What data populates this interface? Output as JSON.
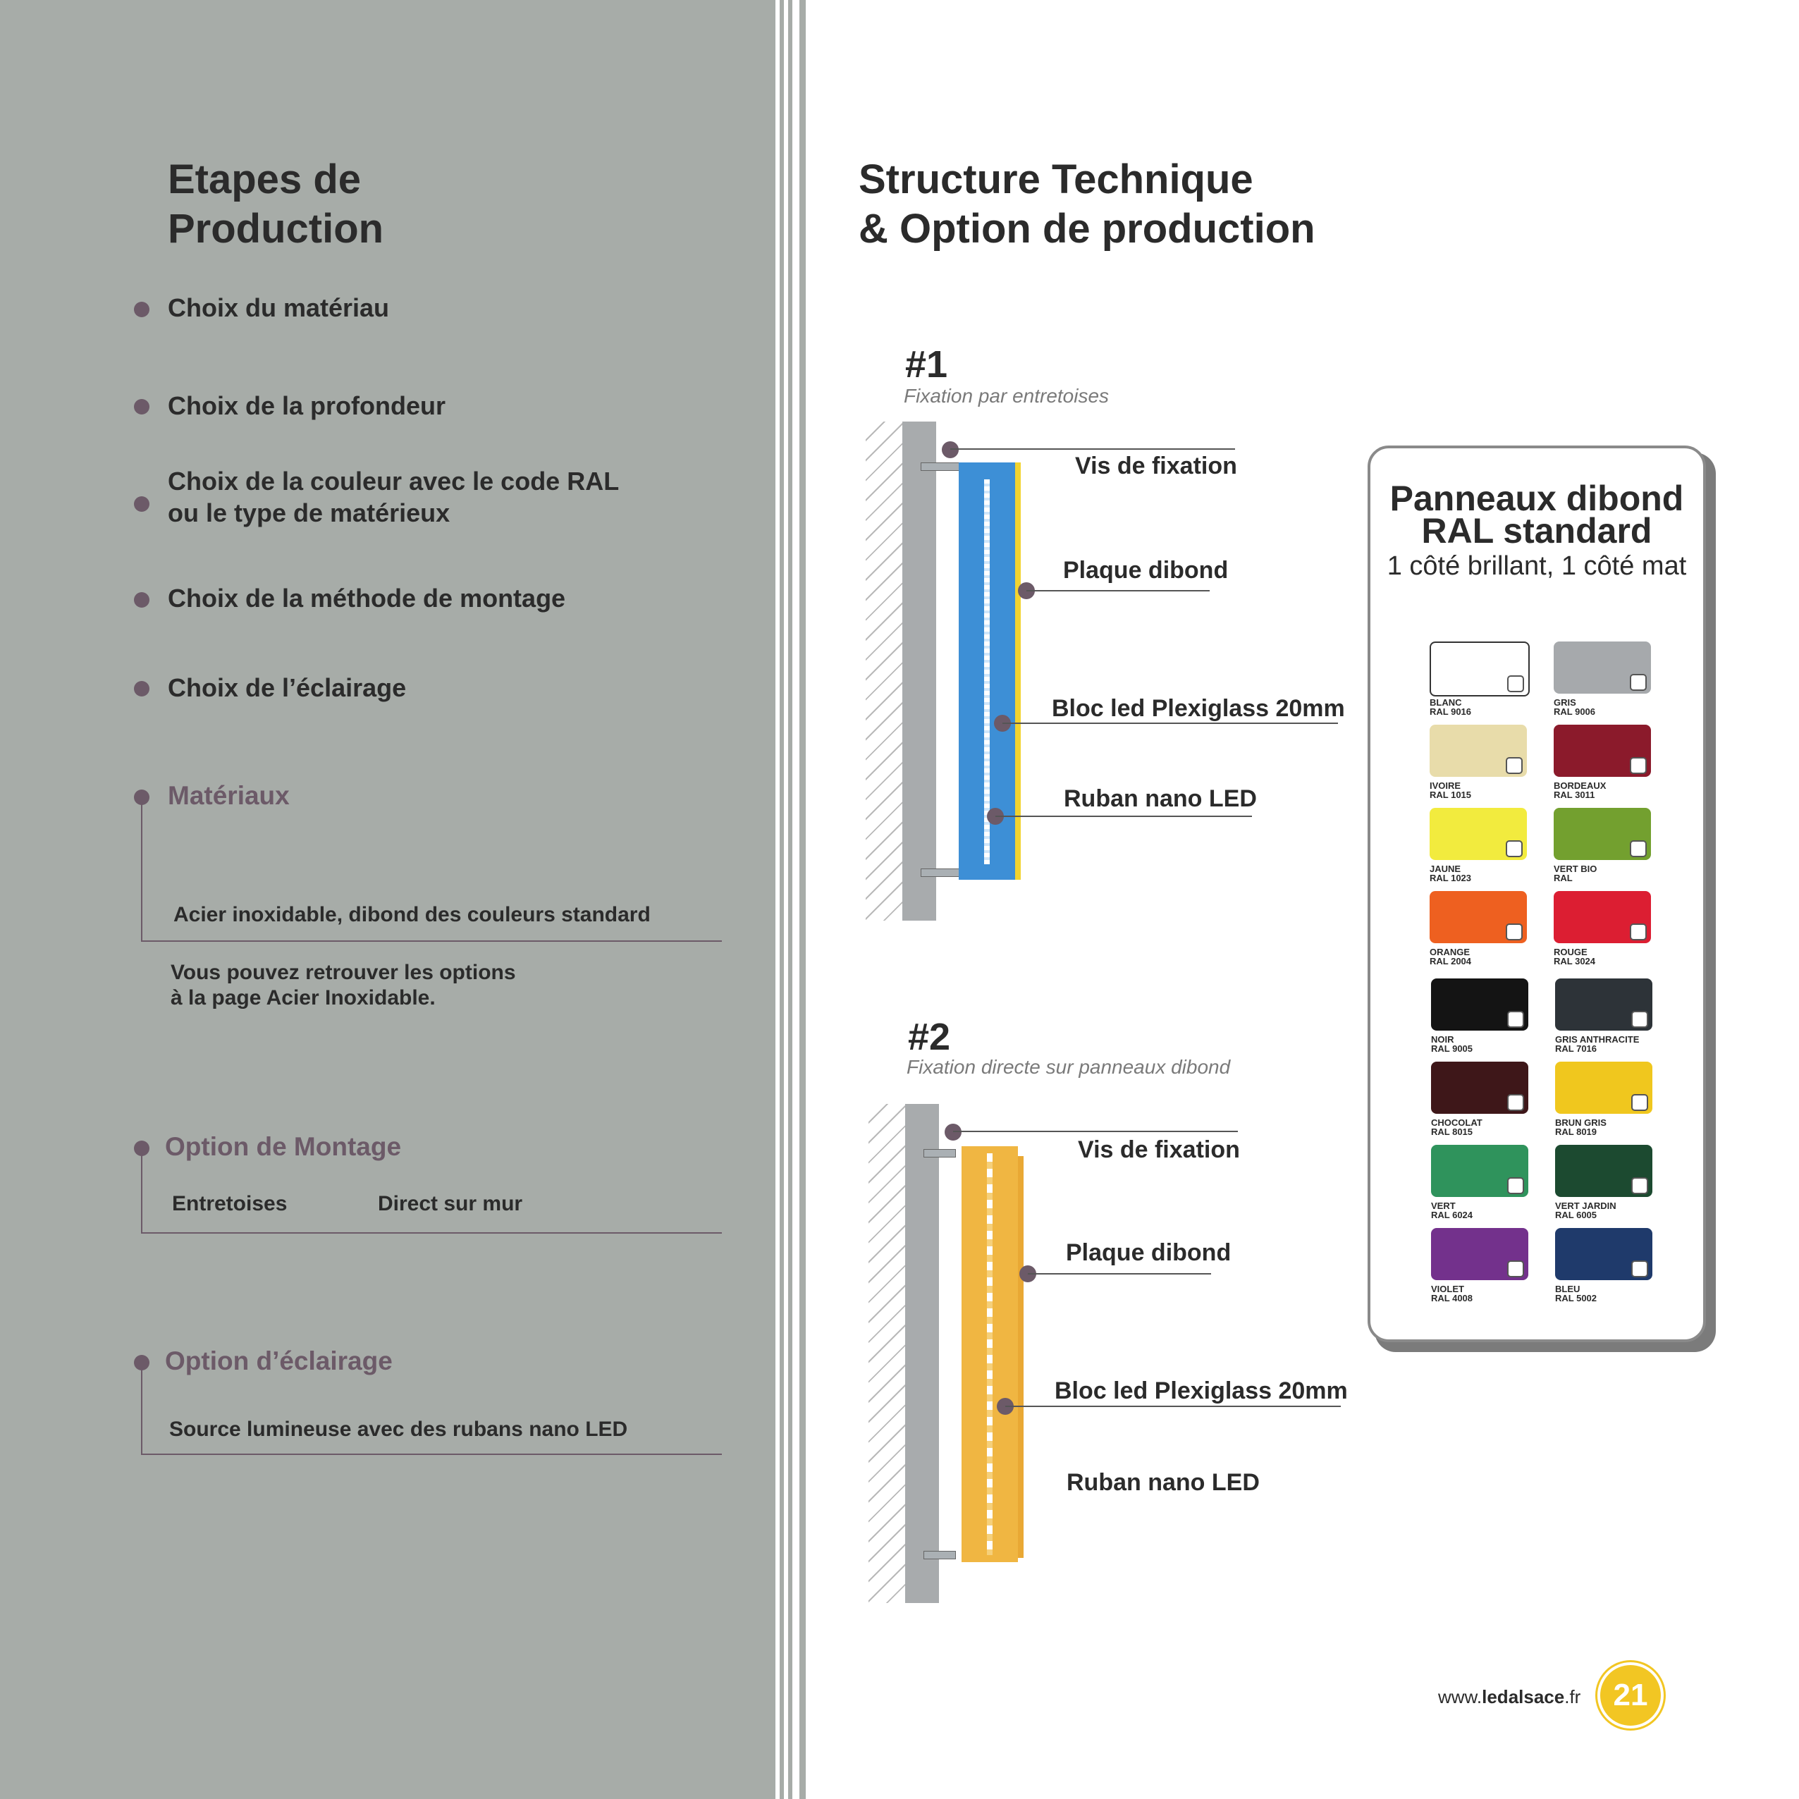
{
  "left": {
    "title_line1": "Etapes de",
    "title_line2": "Production",
    "steps": [
      "Choix du matériau",
      "Choix de la profondeur",
      "Choix de la couleur avec le code RAL",
      "ou le type de matérieux",
      "Choix de la méthode de montage",
      "Choix de l’éclairage"
    ],
    "materiaux": {
      "title": "Matériaux",
      "text": "Acier inoxidable, dibond des couleurs standard",
      "note_line1": "Vous pouvez retrouver les options",
      "note_line2": "à la page Acier Inoxidable."
    },
    "montage": {
      "title": "Option de Montage",
      "opt1": "Entretoises",
      "opt2": "Direct sur mur"
    },
    "eclairage": {
      "title": "Option d’éclairage",
      "text": "Source lumineuse avec des rubans nano LED"
    }
  },
  "right": {
    "title_line1": "Structure Technique",
    "title_line2": "& Option de production",
    "diagram1": {
      "num": "#1",
      "subtitle": "Fixation par entretoises",
      "labels": [
        "Vis de fixation",
        "Plaque dibond",
        "Bloc led Plexiglass 20mm",
        "Ruban nano LED"
      ],
      "panel_color": "#3d8fd6",
      "edge_color": "#f2d330"
    },
    "diagram2": {
      "num": "#2",
      "subtitle": "Fixation directe sur panneaux dibond",
      "labels": [
        "Vis de fixation",
        "Plaque dibond",
        "Bloc led Plexiglass 20mm",
        "Ruban nano LED"
      ],
      "panel_color": "#f0b642"
    },
    "ral_box": {
      "title_line1": "Panneaux dibond",
      "title_line2": "RAL standard",
      "subtitle": "1 côté brillant, 1 côté mat",
      "swatches": [
        {
          "name": "BLANC",
          "code": "RAL 9016",
          "color": "#ffffff"
        },
        {
          "name": "GRIS",
          "code": "RAL 9006",
          "color": "#a6a9ac"
        },
        {
          "name": "IVOIRE",
          "code": "RAL 1015",
          "color": "#e8dcaa"
        },
        {
          "name": "BORDEAUX",
          "code": "RAL 3011",
          "color": "#8b1a2b"
        },
        {
          "name": "JAUNE",
          "code": "RAL 1023",
          "color": "#f2eb3e"
        },
        {
          "name": "VERT BIO",
          "code": "RAL",
          "color": "#73a02f"
        },
        {
          "name": "ORANGE",
          "code": "RAL 2004",
          "color": "#ee6020"
        },
        {
          "name": "ROUGE",
          "code": "RAL 3024",
          "color": "#dc1e32"
        },
        {
          "name": "NOIR",
          "code": "RAL 9005",
          "color": "#141414"
        },
        {
          "name": "GRIS ANTHRACITE",
          "code": "RAL 7016",
          "color": "#2d3338"
        },
        {
          "name": "CHOCOLAT",
          "code": "RAL 8015",
          "color": "#3e1719"
        },
        {
          "name": "BRUN GRIS",
          "code": "RAL 8019",
          "color": "#f0c71e"
        },
        {
          "name": "VERT",
          "code": "RAL 6024",
          "color": "#2f935c"
        },
        {
          "name": "VERT JARDIN",
          "code": "RAL 6005",
          "color": "#1c4a30"
        },
        {
          "name": "VIOLET",
          "code": "RAL 4008",
          "color": "#73318c"
        },
        {
          "name": "BLEU",
          "code": "RAL 5002",
          "color": "#1f3a6b"
        }
      ]
    }
  },
  "footer": {
    "url_prefix": "www.",
    "url_bold": "ledalsace",
    "url_suffix": ".fr",
    "page_number": "21",
    "badge_color": "#f2c623"
  }
}
